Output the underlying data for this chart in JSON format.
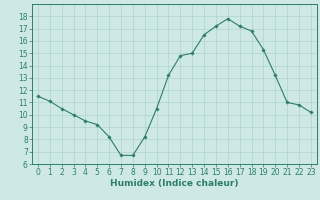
{
  "x": [
    0,
    1,
    2,
    3,
    4,
    5,
    6,
    7,
    8,
    9,
    10,
    11,
    12,
    13,
    14,
    15,
    16,
    17,
    18,
    19,
    20,
    21,
    22,
    23
  ],
  "y": [
    11.5,
    11.1,
    10.5,
    10.0,
    9.5,
    9.2,
    8.2,
    6.7,
    6.7,
    8.2,
    10.5,
    13.2,
    14.8,
    15.0,
    16.5,
    17.2,
    17.8,
    17.2,
    16.8,
    15.3,
    13.2,
    11.0,
    10.8,
    10.2
  ],
  "line_color": "#2e7d6e",
  "marker": "D",
  "marker_size": 1.8,
  "bg_color": "#cde8e5",
  "grid_color": "#b0d4cf",
  "xlabel": "Humidex (Indice chaleur)",
  "xlim": [
    -0.5,
    23.5
  ],
  "ylim": [
    6,
    19
  ],
  "yticks": [
    6,
    7,
    8,
    9,
    10,
    11,
    12,
    13,
    14,
    15,
    16,
    17,
    18
  ],
  "xticks": [
    0,
    1,
    2,
    3,
    4,
    5,
    6,
    7,
    8,
    9,
    10,
    11,
    12,
    13,
    14,
    15,
    16,
    17,
    18,
    19,
    20,
    21,
    22,
    23
  ],
  "tick_fontsize": 5.5,
  "xlabel_fontsize": 6.5
}
